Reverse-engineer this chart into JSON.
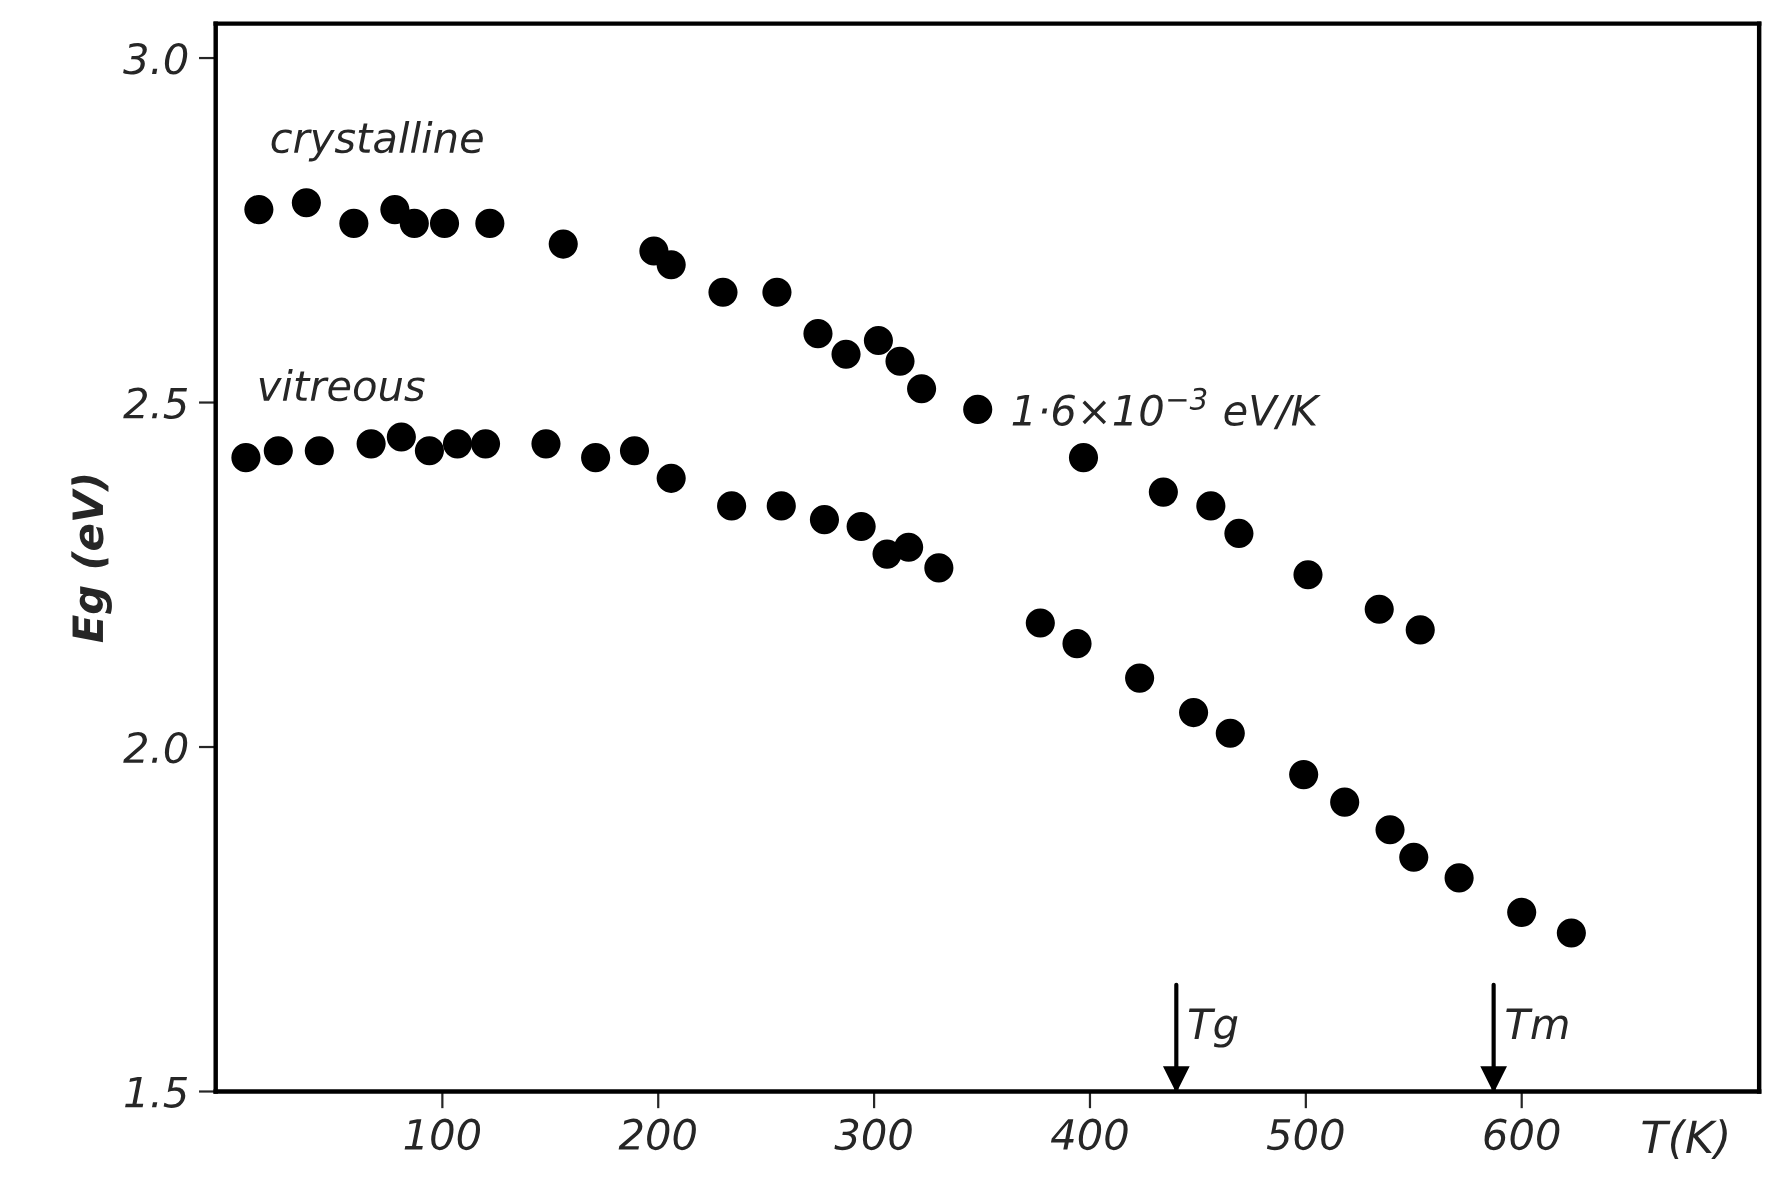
{
  "chart_data": {
    "type": "scatter",
    "xlabel": "T(K)",
    "ylabel": "Eg (eV)",
    "xlim": [
      -5,
      710
    ],
    "ylim": [
      1.5,
      3.05
    ],
    "xticks": [
      100,
      200,
      300,
      400,
      500,
      600
    ],
    "yticks": [
      {
        "value": 1.5,
        "label": "1.5"
      },
      {
        "value": 2.0,
        "label": "2.0"
      },
      {
        "value": 2.5,
        "label": "2.5"
      },
      {
        "value": 3.0,
        "label": "3.0"
      }
    ],
    "marker": "circle",
    "grid": false,
    "legend": false,
    "series": [
      {
        "name": "crystalline",
        "color": "#000000",
        "x": [
          15,
          37,
          59,
          78,
          87,
          101,
          122,
          156,
          198,
          206,
          230,
          255,
          274,
          287,
          302,
          312,
          322,
          348,
          397,
          434,
          456,
          469,
          501,
          534,
          553
        ],
        "values": [
          2.78,
          2.79,
          2.76,
          2.78,
          2.76,
          2.76,
          2.76,
          2.73,
          2.72,
          2.7,
          2.66,
          2.66,
          2.6,
          2.57,
          2.59,
          2.56,
          2.52,
          2.49,
          2.42,
          2.37,
          2.35,
          2.31,
          2.25,
          2.2,
          2.17
        ]
      },
      {
        "name": "vitreous",
        "color": "#000000",
        "x": [
          9,
          24,
          43,
          67,
          81,
          94,
          107,
          120,
          148,
          171,
          189,
          206,
          234,
          257,
          277,
          294,
          306,
          316,
          330,
          377,
          394,
          423,
          448,
          465,
          499,
          518,
          539,
          550,
          571,
          600,
          623
        ],
        "values": [
          2.42,
          2.43,
          2.43,
          2.44,
          2.45,
          2.43,
          2.44,
          2.44,
          2.44,
          2.42,
          2.43,
          2.39,
          2.35,
          2.35,
          2.33,
          2.32,
          2.28,
          2.29,
          2.26,
          2.18,
          2.15,
          2.1,
          2.05,
          2.02,
          1.96,
          1.92,
          1.88,
          1.84,
          1.81,
          1.76,
          1.73
        ]
      }
    ],
    "annotations": [
      "1·6×10$^{−3}$ eV/K"
    ],
    "ref_lines": [
      {
        "axis": "x",
        "value": 440,
        "label": "Tg"
      },
      {
        "axis": "x",
        "value": 587,
        "label": "Tm"
      }
    ]
  }
}
